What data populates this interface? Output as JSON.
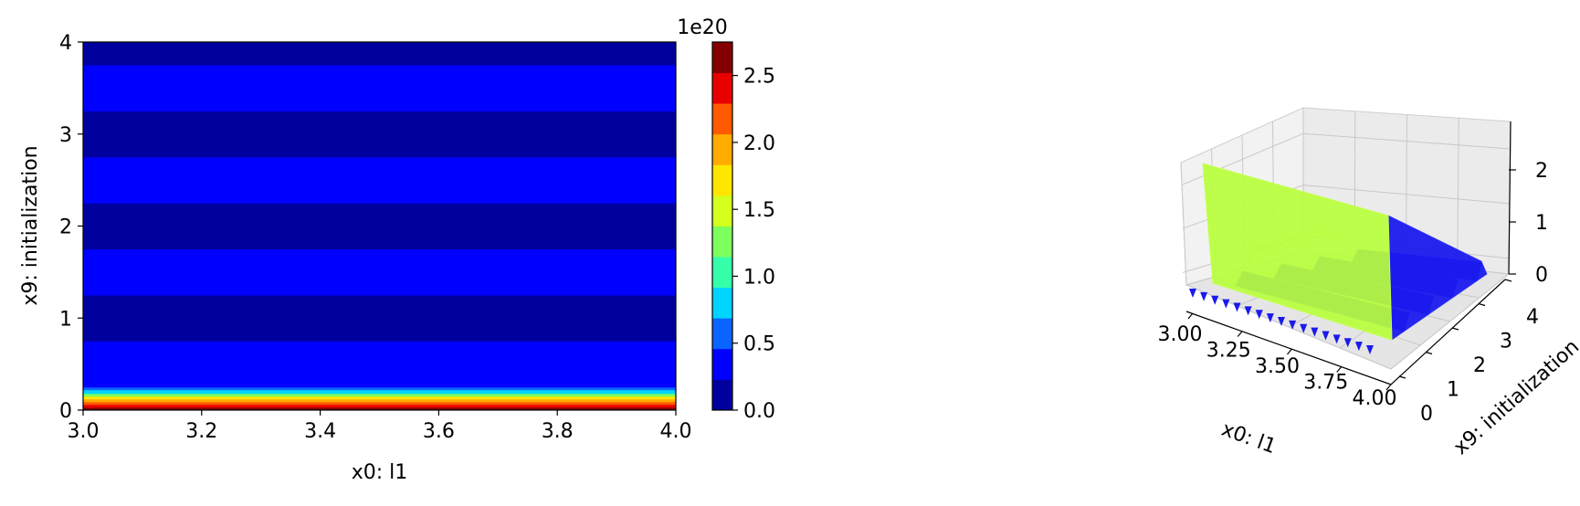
{
  "chart_data": [
    {
      "type": "contourf",
      "xlabel": "x0: l1",
      "ylabel": "x9: initialization",
      "xlim": [
        3.0,
        4.0
      ],
      "ylim": [
        0,
        4
      ],
      "xticks": [
        "3.0",
        "3.2",
        "3.4",
        "3.6",
        "3.8",
        "4.0"
      ],
      "yticks": [
        "0",
        "1",
        "2",
        "3",
        "4"
      ],
      "colormap": "jet",
      "bands": [
        {
          "y0": 0.0,
          "y1": 0.03,
          "level": 11
        },
        {
          "y0": 0.03,
          "y1": 0.06,
          "level": 10
        },
        {
          "y0": 0.06,
          "y1": 0.09,
          "level": 9
        },
        {
          "y0": 0.09,
          "y1": 0.12,
          "level": 8
        },
        {
          "y0": 0.12,
          "y1": 0.15,
          "level": 7
        },
        {
          "y0": 0.15,
          "y1": 0.18,
          "level": 5
        },
        {
          "y0": 0.18,
          "y1": 0.22,
          "level": 3
        },
        {
          "y0": 0.22,
          "y1": 0.25,
          "level": 2
        },
        {
          "y0": 0.25,
          "y1": 0.75,
          "level": 1
        },
        {
          "y0": 0.75,
          "y1": 1.25,
          "level": 0
        },
        {
          "y0": 1.25,
          "y1": 1.75,
          "level": 1
        },
        {
          "y0": 1.75,
          "y1": 2.25,
          "level": 0
        },
        {
          "y0": 2.25,
          "y1": 2.75,
          "level": 1
        },
        {
          "y0": 2.75,
          "y1": 3.25,
          "level": 0
        },
        {
          "y0": 3.25,
          "y1": 3.75,
          "level": 1
        },
        {
          "y0": 3.75,
          "y1": 4.0,
          "level": 0
        }
      ]
    },
    {
      "type": "colorbar",
      "offset_label": "1e20",
      "range": [
        0,
        2.75
      ],
      "ticks": [
        {
          "value": 0.0,
          "label": "0.0"
        },
        {
          "value": 0.5,
          "label": "0.5"
        },
        {
          "value": 1.0,
          "label": "1.0"
        },
        {
          "value": 1.5,
          "label": "1.5"
        },
        {
          "value": 2.0,
          "label": "2.0"
        },
        {
          "value": 2.5,
          "label": "2.5"
        }
      ],
      "colors": [
        "#00009f",
        "#0000ff",
        "#0a64ff",
        "#00d4ff",
        "#36ffaa",
        "#7dff5e",
        "#d4ff1f",
        "#ffe600",
        "#ffab00",
        "#ff5a00",
        "#e80000",
        "#840000"
      ]
    },
    {
      "type": "surface3d",
      "xlabel": "x0: l1",
      "ylabel": "x9: initialization",
      "xticks": [
        "3.00",
        "3.25",
        "3.50",
        "3.75",
        "4.00"
      ],
      "yticks": [
        "0",
        "1",
        "2",
        "3",
        "4"
      ],
      "zticks": [
        "0",
        "1",
        "2"
      ],
      "surface_color": "#b8ff3c",
      "base_color": "#1a1aee"
    }
  ]
}
